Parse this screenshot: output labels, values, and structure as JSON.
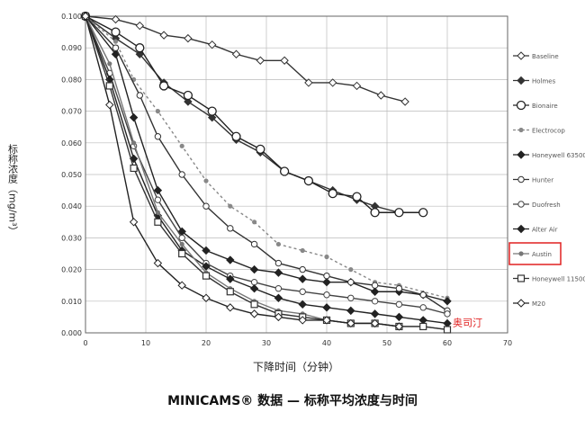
{
  "chart_data": {
    "type": "line",
    "title": "MINICAMS® 数据 — 标称平均浓度与时间",
    "x_label": "下降时间（分钟）",
    "y_label": "标称浓度（mg/m³）",
    "annotation": "奥司汀",
    "highlight": "Austin",
    "xlim": [
      0,
      70
    ],
    "xticks": [
      0,
      10,
      20,
      30,
      40,
      50,
      60,
      70
    ],
    "ylim": [
      0,
      0.1
    ],
    "yticks": [
      {
        "value": 0,
        "label": "0.000"
      },
      {
        "value": 0.01,
        "label": "0.010"
      },
      {
        "value": 0.02,
        "label": "0.020"
      },
      {
        "value": 0.03,
        "label": "0.030"
      },
      {
        "value": 0.04,
        "label": "0.040"
      },
      {
        "value": 0.05,
        "label": "0.050"
      },
      {
        "value": 0.06,
        "label": "0.060"
      },
      {
        "value": 0.07,
        "label": "0.070"
      },
      {
        "value": 0.08,
        "label": "0.080"
      },
      {
        "value": 0.09,
        "label": "0.090"
      },
      {
        "value": 0.1,
        "label": "0.100"
      }
    ],
    "grid": true,
    "series": [
      {
        "name": "Baseline",
        "color": "#333333",
        "marker": "diamond-open",
        "x": [
          0,
          5,
          9,
          13,
          17,
          21,
          25,
          29,
          33,
          37,
          41,
          45,
          49,
          53
        ],
        "values": [
          0.1,
          0.099,
          0.097,
          0.094,
          0.093,
          0.091,
          0.088,
          0.086,
          0.086,
          0.079,
          0.079,
          0.078,
          0.075,
          0.073
        ]
      },
      {
        "name": "Holmes",
        "color": "#333333",
        "marker": "diamond",
        "x": [
          0,
          5,
          9,
          13,
          17,
          21,
          25,
          29,
          33,
          37,
          41,
          45,
          48,
          52
        ],
        "values": [
          0.1,
          0.093,
          0.088,
          0.079,
          0.073,
          0.068,
          0.061,
          0.057,
          0.051,
          0.048,
          0.045,
          0.042,
          0.04,
          0.038
        ]
      },
      {
        "name": "Bionaire",
        "color": "#222222",
        "marker": "circle-big",
        "x": [
          0,
          5,
          9,
          13,
          17,
          21,
          25,
          29,
          33,
          37,
          41,
          45,
          48,
          52,
          56
        ],
        "values": [
          0.1,
          0.095,
          0.09,
          0.078,
          0.075,
          0.07,
          0.062,
          0.058,
          0.051,
          0.048,
          0.044,
          0.043,
          0.038,
          0.038,
          0.038
        ]
      },
      {
        "name": "Electrocop",
        "color": "#888888",
        "marker": "dot",
        "dashed": true,
        "x": [
          0,
          5,
          8,
          12,
          16,
          20,
          24,
          28,
          32,
          36,
          40,
          44,
          48,
          52,
          60
        ],
        "values": [
          0.1,
          0.092,
          0.08,
          0.07,
          0.059,
          0.048,
          0.04,
          0.035,
          0.028,
          0.026,
          0.024,
          0.02,
          0.016,
          0.015,
          0.011
        ]
      },
      {
        "name": "Honeywell 63500",
        "color": "#222222",
        "marker": "diamond",
        "x": [
          0,
          5,
          8,
          12,
          16,
          20,
          24,
          28,
          32,
          36,
          40,
          44,
          48,
          52,
          56,
          60
        ],
        "values": [
          0.1,
          0.088,
          0.068,
          0.045,
          0.032,
          0.026,
          0.023,
          0.02,
          0.019,
          0.017,
          0.016,
          0.016,
          0.013,
          0.013,
          0.012,
          0.01
        ]
      },
      {
        "name": "Hunter",
        "color": "#333333",
        "marker": "circle",
        "x": [
          0,
          5,
          9,
          12,
          16,
          20,
          24,
          28,
          32,
          36,
          40,
          44,
          48,
          52,
          56,
          60
        ],
        "values": [
          0.1,
          0.09,
          0.075,
          0.062,
          0.05,
          0.04,
          0.033,
          0.028,
          0.022,
          0.02,
          0.018,
          0.016,
          0.015,
          0.014,
          0.012,
          0.007
        ]
      },
      {
        "name": "Duofresh",
        "color": "#444444",
        "marker": "circle",
        "x": [
          0,
          4,
          8,
          12,
          16,
          20,
          24,
          28,
          32,
          36,
          40,
          44,
          48,
          52,
          56,
          60
        ],
        "values": [
          0.1,
          0.082,
          0.059,
          0.042,
          0.03,
          0.022,
          0.018,
          0.016,
          0.014,
          0.013,
          0.012,
          0.011,
          0.01,
          0.009,
          0.008,
          0.006
        ]
      },
      {
        "name": "Alter Air",
        "color": "#222222",
        "marker": "diamond",
        "x": [
          0,
          4,
          8,
          12,
          16,
          20,
          24,
          28,
          32,
          36,
          40,
          44,
          48,
          52,
          56,
          60
        ],
        "values": [
          0.1,
          0.08,
          0.055,
          0.037,
          0.026,
          0.021,
          0.017,
          0.014,
          0.011,
          0.009,
          0.008,
          0.007,
          0.006,
          0.005,
          0.004,
          0.003
        ]
      },
      {
        "name": "Austin",
        "color": "#777777",
        "marker": "dot",
        "x": [
          0,
          4,
          8,
          12,
          16,
          20,
          24,
          28,
          32,
          36,
          40,
          44,
          48,
          52,
          56,
          60
        ],
        "values": [
          0.1,
          0.085,
          0.06,
          0.038,
          0.028,
          0.019,
          0.014,
          0.01,
          0.007,
          0.006,
          0.004,
          0.003,
          0.003,
          0.002,
          0.002,
          0.001
        ]
      },
      {
        "name": "Honeywell 11500",
        "color": "#333333",
        "marker": "square",
        "x": [
          0,
          4,
          8,
          12,
          16,
          20,
          24,
          28,
          32,
          36,
          40,
          44,
          48,
          52,
          56,
          60
        ],
        "values": [
          0.1,
          0.078,
          0.052,
          0.035,
          0.025,
          0.018,
          0.013,
          0.009,
          0.006,
          0.005,
          0.004,
          0.003,
          0.003,
          0.002,
          0.002,
          0.001
        ]
      },
      {
        "name": "M20",
        "color": "#222222",
        "marker": "diamond-open",
        "x": [
          0,
          4,
          8,
          12,
          16,
          20,
          24,
          28,
          32,
          36,
          40,
          44,
          48,
          52
        ],
        "values": [
          0.1,
          0.072,
          0.035,
          0.022,
          0.015,
          0.011,
          0.008,
          0.006,
          0.005,
          0.004,
          0.004,
          0.003,
          0.003,
          0.002
        ]
      }
    ]
  }
}
